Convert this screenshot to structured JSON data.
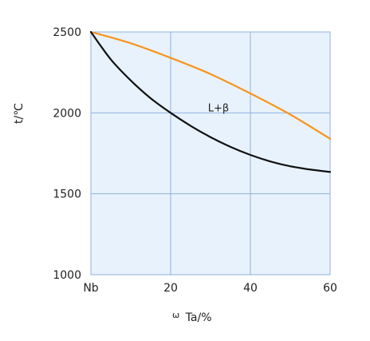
{
  "chart_data": {
    "type": "line",
    "xlabel": "Ta/%",
    "xlabel_prefix": "ω",
    "ylabel": "t/℃",
    "xlim": [
      0,
      60
    ],
    "ylim": [
      1000,
      2500
    ],
    "x_ticks": [
      {
        "value": 0,
        "label": "Nb"
      },
      {
        "value": 20,
        "label": "20"
      },
      {
        "value": 40,
        "label": "40"
      },
      {
        "value": 60,
        "label": "60"
      }
    ],
    "y_ticks": [
      {
        "value": 1000,
        "label": "1000"
      },
      {
        "value": 1500,
        "label": "1500"
      },
      {
        "value": 2000,
        "label": "2000"
      },
      {
        "value": 2500,
        "label": "2500"
      }
    ],
    "grid": true,
    "series": [
      {
        "color": "#f7941d",
        "x": [
          0,
          10,
          20,
          30,
          40,
          50,
          60
        ],
        "y": [
          2500,
          2430,
          2340,
          2240,
          2120,
          1990,
          1840
        ]
      },
      {
        "color": "#111111",
        "x": [
          0,
          5,
          10,
          15,
          20,
          25,
          30,
          35,
          40,
          45,
          50,
          55,
          60
        ],
        "y": [
          2500,
          2330,
          2200,
          2090,
          2000,
          1920,
          1850,
          1790,
          1740,
          1700,
          1670,
          1650,
          1635
        ]
      }
    ],
    "annotations": [
      {
        "text": "L+β",
        "x": 32,
        "y": 2010
      }
    ],
    "background_color": "#e8f2fc",
    "grid_color": "#8fb3de"
  }
}
